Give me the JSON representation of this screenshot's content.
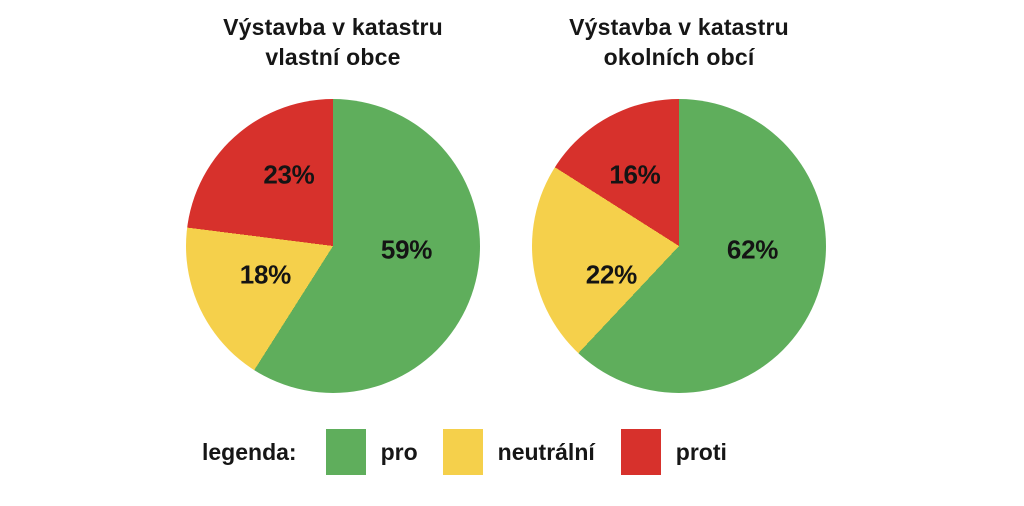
{
  "page": {
    "background": "#ffffff",
    "text_color": "#161616"
  },
  "chart_data": [
    {
      "type": "pie",
      "title": "Výstavba v katastru vlastní obce",
      "title_lines": [
        "Výstavba v katastru",
        "vlastní obce"
      ],
      "categories": [
        "pro",
        "neutrální",
        "proti"
      ],
      "values": [
        59,
        18,
        23
      ],
      "value_labels": [
        "59%",
        "18%",
        "23%"
      ],
      "colors": [
        "#5fae5c",
        "#f5d04b",
        "#d7312c"
      ],
      "start_angle_deg": 0,
      "direction": "clockwise",
      "label_color": "#141414"
    },
    {
      "type": "pie",
      "title": "Výstavba v katastru okolních obcí",
      "title_lines": [
        "Výstavba v katastru",
        "okolních obcí"
      ],
      "categories": [
        "pro",
        "neutrální",
        "proti"
      ],
      "values": [
        62,
        22,
        16
      ],
      "value_labels": [
        "62%",
        "22%",
        "16%"
      ],
      "colors": [
        "#5fae5c",
        "#f5d04b",
        "#d7312c"
      ],
      "start_angle_deg": 0,
      "direction": "clockwise",
      "label_color": "#141414"
    }
  ],
  "legend": {
    "label": "legenda:",
    "items": [
      {
        "label": "pro",
        "color": "#5fae5c"
      },
      {
        "label": "neutrální",
        "color": "#f5d04b"
      },
      {
        "label": "proti",
        "color": "#d7312c"
      }
    ]
  }
}
